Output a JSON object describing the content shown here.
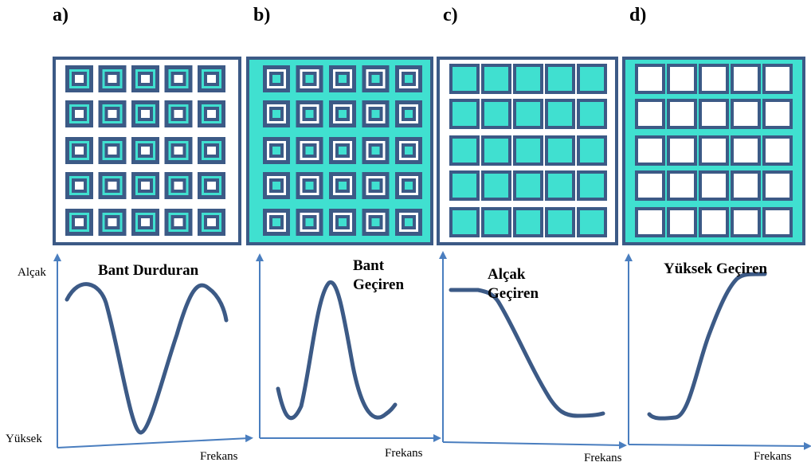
{
  "panels": [
    {
      "letter": "a)",
      "title_lines": [
        "Bant Durduran"
      ],
      "x_label": "Frekans",
      "structure": "square-loop-rings-on-white"
    },
    {
      "letter": "b)",
      "title_lines": [
        "Bant",
        "Geçiren"
      ],
      "x_label": "Frekans",
      "structure": "square-loop-rings-on-cyan"
    },
    {
      "letter": "c)",
      "title_lines": [
        "Alçak",
        "Geçiren"
      ],
      "x_label": "Frekans",
      "structure": "filled-cyan-patches-on-white"
    },
    {
      "letter": "d)",
      "title_lines": [
        "Yüksek Geçiren"
      ],
      "x_label": "Frekans",
      "structure": "white-apertures-on-cyan"
    }
  ],
  "y_axis": {
    "top_label": "Alçak",
    "bottom_label": "Yüksek"
  },
  "colors": {
    "navy": "#3c5a86",
    "cyan": "#40e0d0",
    "axis": "#4a7ebf",
    "white": "#ffffff"
  }
}
